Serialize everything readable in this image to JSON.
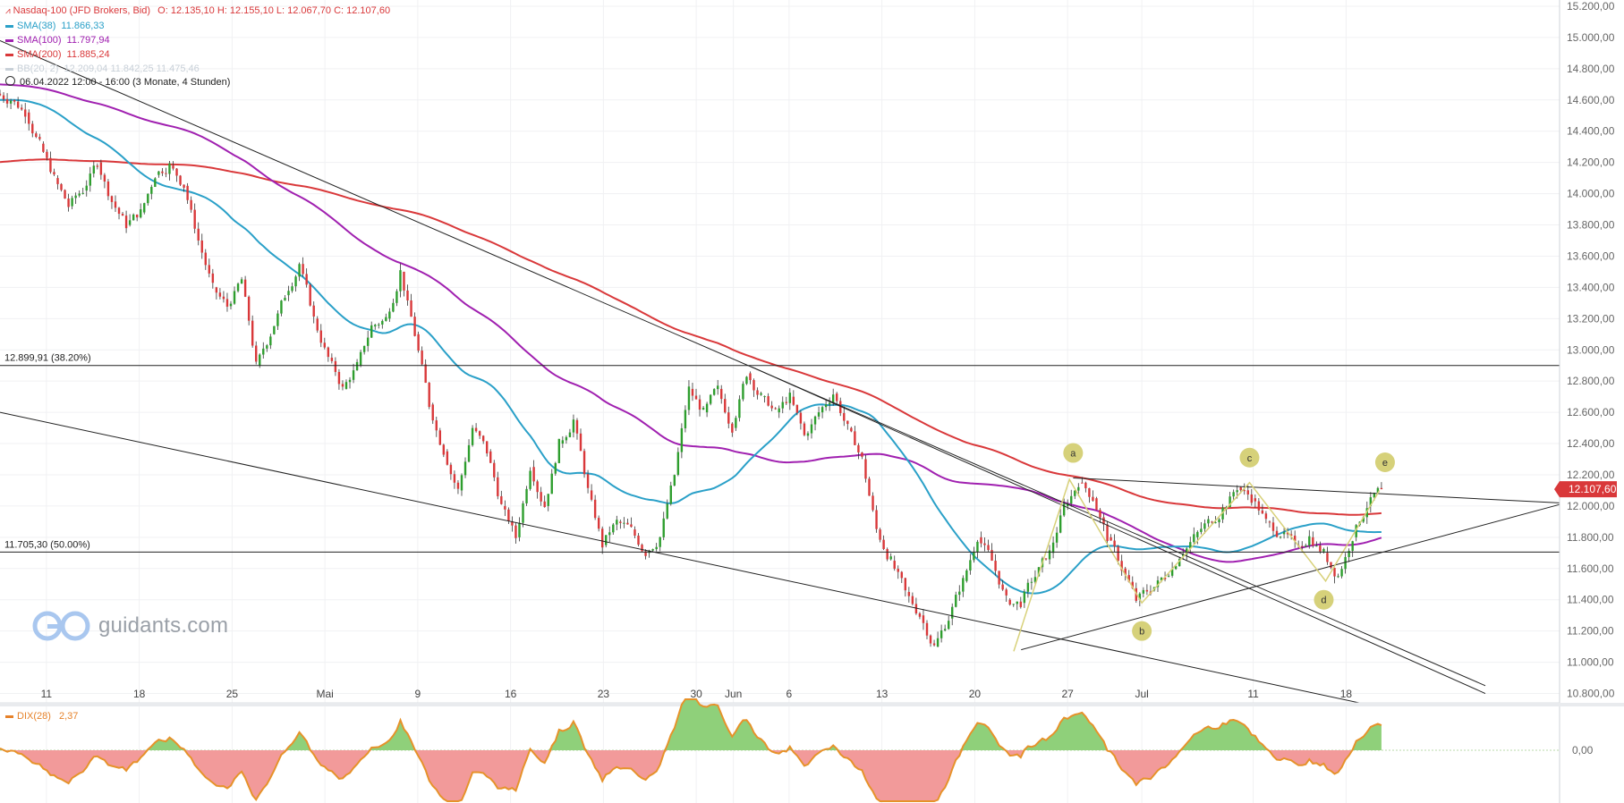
{
  "header": {
    "instrument": "Nasdaq-100 (JFD Brokers, Bid)",
    "ohlc": "O: 12.135,10  H: 12.155,10  L: 12.067,70  C: 12.107,60",
    "period": "06.04.2022 12:00 - 16:00   (3 Monate, 4 Stunden)"
  },
  "legend": [
    {
      "name": "SMA(38)",
      "value": "11.866,33",
      "color": "#2aa0c8"
    },
    {
      "name": "SMA(100)",
      "value": "11.797,94",
      "color": "#a020b0"
    },
    {
      "name": "SMA(200)",
      "value": "11.885,24",
      "color": "#d9383a"
    },
    {
      "name": "BB(20, 2)",
      "value": "12.209,04   11.842,25   11.475,46",
      "color": "#c8d0d8"
    }
  ],
  "logo": {
    "text": "guidants.com",
    "icon": "guidants-logo-icon"
  },
  "chart_data": {
    "type": "candlestick",
    "title": "Nasdaq-100 (JFD Brokers, Bid)",
    "y_ticks": [
      "15.200,00",
      "15.000,00",
      "14.800,00",
      "14.600,00",
      "14.400,00",
      "14.200,00",
      "14.000,00",
      "13.800,00",
      "13.600,00",
      "13.400,00",
      "13.200,00",
      "13.000,00",
      "12.800,00",
      "12.600,00",
      "12.400,00",
      "12.200,00",
      "12.000,00",
      "11.800,00",
      "11.600,00",
      "11.400,00",
      "11.200,00",
      "11.000,00",
      "10.800,00"
    ],
    "y_tick_values": [
      15200,
      15000,
      14800,
      14600,
      14400,
      14200,
      14000,
      13800,
      13600,
      13400,
      13200,
      13000,
      12800,
      12600,
      12400,
      12200,
      12000,
      11800,
      11600,
      11400,
      11200,
      11000,
      10800
    ],
    "ylim": [
      10740,
      15240
    ],
    "x_ticks": [
      {
        "label": "11",
        "t": 0.5
      },
      {
        "label": "18",
        "t": 5.5
      },
      {
        "label": "25",
        "t": 10.5
      },
      {
        "label": "Mai",
        "t": 15.5
      },
      {
        "label": "9",
        "t": 20.5
      },
      {
        "label": "16",
        "t": 25.5
      },
      {
        "label": "23",
        "t": 30.5
      },
      {
        "label": "30",
        "t": 35.5
      },
      {
        "label": "Jun",
        "t": 37.5
      },
      {
        "label": "6",
        "t": 40.5
      },
      {
        "label": "13",
        "t": 45.5
      },
      {
        "label": "20",
        "t": 50.5
      },
      {
        "label": "27",
        "t": 55.5
      },
      {
        "label": "Jul",
        "t": 59.5
      },
      {
        "label": "11",
        "t": 65.5
      },
      {
        "label": "18",
        "t": 70.5
      }
    ],
    "xlim": [
      -2,
      82
    ],
    "last_price": "12.107,60",
    "last_value": 12107.6,
    "candles_daily_close": [
      14600,
      14520,
      14320,
      14100,
      13920,
      14020,
      14200,
      13950,
      13800,
      13880,
      14120,
      14180,
      14050,
      13700,
      13400,
      13280,
      13450,
      12900,
      13100,
      13350,
      13550,
      13200,
      12950,
      12750,
      12900,
      13150,
      13200,
      13500,
      13100,
      12650,
      12350,
      12100,
      12500,
      12350,
      12000,
      11800,
      12250,
      12000,
      12400,
      12550,
      12100,
      11750,
      11900,
      11850,
      11700,
      11800,
      12200,
      12750,
      12600,
      12750,
      12500,
      12850,
      12700,
      12600,
      12700,
      12450,
      12600,
      12720,
      12500,
      12300,
      11850,
      11650,
      11450,
      11300,
      11100,
      11280,
      11520,
      11800,
      11650,
      11400,
      11380,
      11550,
      11700,
      12000,
      12150,
      12050,
      11800,
      11600,
      11400,
      11460,
      11550,
      11680,
      11800,
      11900,
      11980,
      12120,
      12050,
      11900,
      11820,
      11750,
      11800,
      11700,
      11550,
      11800,
      12000,
      12107.6
    ],
    "overlays": {
      "horizontal_levels": [
        {
          "label": "12.899,91 (38.20%)",
          "value": 12899.91
        },
        {
          "label": "11.705,30 (50.00%)",
          "value": 11705.3
        }
      ],
      "wave_labels": [
        "a",
        "b",
        "c",
        "d",
        "e"
      ]
    }
  },
  "indicator": {
    "name": "DIX(28)",
    "value": "2,37",
    "zero_label": "0,00"
  }
}
